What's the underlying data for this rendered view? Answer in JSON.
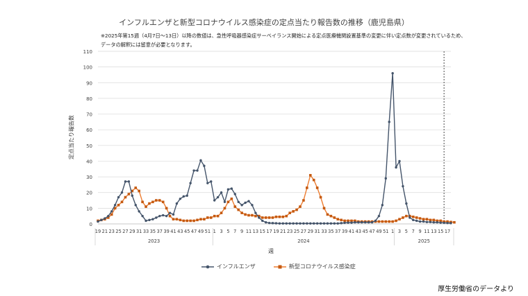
{
  "title": "インフルエンザと新型コロナウイルス感染症の定点当たり報告数の推移（鹿児島県）",
  "note_line1": "※2025年第15週（4月7日～13日）以降の数値は、急性呼吸器感染症サーベイランス開始による定点医療機関設置基準の変更に伴い定点数が変更されているため、",
  "note_line2": "データの解釈には留意が必要となります。",
  "source": "厚生労働省のデータより",
  "colors": {
    "influenza": "#44546a",
    "covid": "#c55a11",
    "grid": "#d9d9d9"
  },
  "chart_data": {
    "type": "line",
    "ylabel": "定点当たり報告数",
    "xlabel": "週",
    "ylim": [
      0,
      110
    ],
    "yticks": [
      0,
      10,
      20,
      30,
      40,
      50,
      60,
      70,
      80,
      90,
      100,
      110
    ],
    "grid": true,
    "legend_position": "bottom",
    "reference_line_week": "2025-15",
    "year_labels": [
      "2023",
      "2024",
      "2025"
    ],
    "x_tick_labels": [
      "19",
      "21",
      "23",
      "25",
      "27",
      "29",
      "31",
      "33",
      "35",
      "37",
      "39",
      "41",
      "43",
      "45",
      "47",
      "49",
      "51",
      "1",
      "3",
      "5",
      "7",
      "9",
      "11",
      "13",
      "15",
      "17",
      "19",
      "21",
      "23",
      "25",
      "27",
      "29",
      "31",
      "33",
      "35",
      "37",
      "39",
      "41",
      "43",
      "45",
      "47",
      "49",
      "51",
      "1",
      "3",
      "5",
      "7",
      "9",
      "11",
      "13",
      "15",
      "17"
    ],
    "series": [
      {
        "name": "インフルエンザ",
        "values": [
          1.5,
          2.5,
          3.5,
          5,
          8,
          12,
          17,
          20,
          27,
          27,
          18,
          12,
          8,
          5,
          2,
          2.5,
          3,
          4,
          5,
          5.5,
          5,
          7,
          6,
          13,
          16,
          17.5,
          18,
          26,
          34,
          34,
          40.5,
          37,
          26,
          27,
          15,
          17,
          20,
          14,
          22,
          22.5,
          19,
          14,
          12,
          13.5,
          14.5,
          12,
          7,
          4,
          2,
          1,
          0.6,
          0.5,
          0.4,
          0.3,
          0.3,
          0.3,
          0.3,
          0.3,
          0.3,
          0.3,
          0.3,
          0.3,
          0.3,
          0.3,
          0.3,
          0.3,
          0.3,
          0.3,
          0.3,
          0.3,
          0.3,
          0.5,
          0.7,
          0.8,
          0.8,
          1,
          1,
          1,
          1,
          1,
          1,
          2,
          5,
          12,
          29,
          65,
          96,
          36,
          40,
          24,
          13,
          4,
          2.5,
          2,
          1.5,
          1.5,
          1.2,
          1.2,
          1,
          1,
          0.8,
          0.7,
          0.6,
          0.5
        ]
      },
      {
        "name": "新型コロナウイルス感染症",
        "values": [
          2,
          2.5,
          3,
          4,
          6,
          10,
          12,
          14,
          17,
          19,
          21,
          23,
          21,
          14,
          11,
          13,
          14,
          15,
          15,
          14,
          10,
          5,
          3,
          3,
          2.5,
          2,
          2,
          2,
          2,
          2.5,
          3,
          3,
          4,
          4,
          5,
          5,
          7,
          10,
          14,
          16,
          11,
          9,
          7,
          6,
          5.5,
          5.5,
          5,
          5,
          4,
          4,
          4,
          4,
          4.5,
          4.5,
          4.5,
          5,
          7,
          8,
          9,
          11,
          15,
          23,
          31,
          28,
          23,
          17,
          10,
          6,
          5,
          4,
          3,
          2.5,
          2,
          2,
          2,
          2,
          1.5,
          1.5,
          1.5,
          1.5,
          1.5,
          1.5,
          1.5,
          1.5,
          1.5,
          1.5,
          1.5,
          2,
          3,
          4,
          5,
          5,
          4.5,
          4,
          3.5,
          3,
          3,
          2.5,
          2.5,
          2,
          2,
          1.5,
          1.5,
          1.2,
          1
        ]
      }
    ]
  }
}
